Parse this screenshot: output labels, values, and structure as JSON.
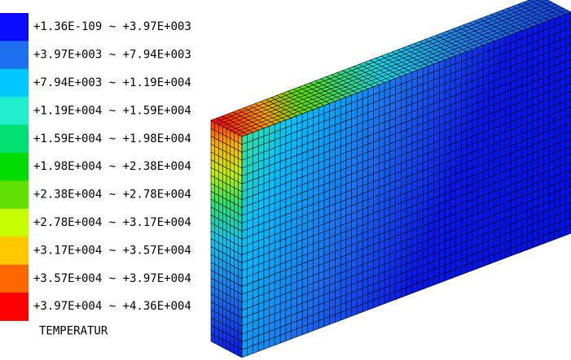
{
  "legend": {
    "title": "TEMPERATUR",
    "entries": [
      {
        "label": "+1.36E-109 ~ +3.97E+003",
        "color": "#0a0aff"
      },
      {
        "label": "+3.97E+003 ~ +7.94E+003",
        "color": "#1e6ef0"
      },
      {
        "label": "+7.94E+003 ~ +1.19E+004",
        "color": "#00c8ff"
      },
      {
        "label": "+1.19E+004 ~ +1.59E+004",
        "color": "#20f0d0"
      },
      {
        "label": "+1.59E+004 ~ +1.98E+004",
        "color": "#00e070"
      },
      {
        "label": "+1.98E+004 ~ +2.38E+004",
        "color": "#00dc00"
      },
      {
        "label": "+2.38E+004 ~ +2.78E+004",
        "color": "#60e000"
      },
      {
        "label": "+2.78E+004 ~ +3.17E+004",
        "color": "#c8ff00"
      },
      {
        "label": "+3.17E+004 ~ +3.57E+004",
        "color": "#ffc800"
      },
      {
        "label": "+3.57E+004 ~ +3.97E+004",
        "color": "#ff6400"
      },
      {
        "label": "+3.97E+004 ~ +4.36E+004",
        "color": "#ff0000"
      }
    ]
  }
}
